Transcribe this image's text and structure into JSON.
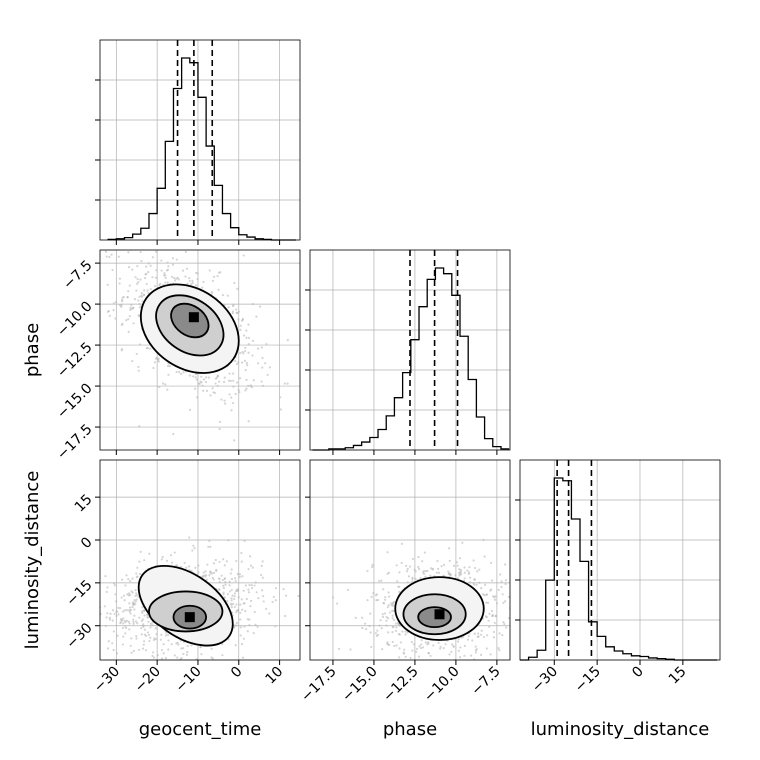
{
  "chart_data": {
    "type": "scatter",
    "title": "",
    "style": {
      "line_color": "#000000",
      "grid": true,
      "grid_color": "#b0b0b0",
      "sample_color": "#b8b8b8"
    },
    "parameters": [
      {
        "key": "geocent_time",
        "label": "geocent_time",
        "range": [
          -34,
          15
        ],
        "ticks": [
          -30,
          -20,
          -10,
          0,
          10
        ],
        "tick_labels": [
          "−30",
          "−20",
          "−10",
          "0",
          "10"
        ]
      },
      {
        "key": "phase",
        "label": "phase",
        "range": [
          -18.9,
          -6.7
        ],
        "ticks": [
          -17.5,
          -15.0,
          -12.5,
          -10.0,
          -7.5
        ],
        "tick_labels": [
          "−17.5",
          "−15.0",
          "−12.5",
          "−10.0",
          "−7.5"
        ]
      },
      {
        "key": "luminosity_distance",
        "label": "luminosity_distance",
        "range": [
          -42,
          28
        ],
        "ticks": [
          -30,
          -15,
          0,
          15
        ],
        "tick_labels": [
          "−30",
          "−15",
          "0",
          "15"
        ]
      }
    ],
    "histograms": [
      {
        "param": "geocent_time",
        "quantiles": [
          -15,
          -11,
          -6.5
        ],
        "bins": [
          -32,
          -30,
          -28,
          -26,
          -24,
          -22,
          -20,
          -18,
          -16,
          -14,
          -12,
          -10,
          -8,
          -6,
          -4,
          -2,
          0,
          2,
          4,
          6,
          8,
          10,
          12,
          14
        ],
        "counts": [
          1,
          2,
          4,
          10,
          20,
          45,
          88,
          168,
          258,
          310,
          302,
          243,
          160,
          93,
          45,
          21,
          9,
          5,
          2,
          1,
          0,
          0,
          0
        ]
      },
      {
        "param": "phase",
        "quantiles": [
          -12.8,
          -11.3,
          -9.9
        ],
        "bins": [
          -18.75,
          -18.25,
          -17.75,
          -17.25,
          -16.75,
          -16.25,
          -15.75,
          -15.25,
          -14.75,
          -14.25,
          -13.75,
          -13.25,
          -12.75,
          -12.25,
          -11.75,
          -11.25,
          -10.75,
          -10.25,
          -9.75,
          -9.25,
          -8.75,
          -8.25,
          -7.75,
          -7.25,
          -6.75
        ],
        "counts": [
          0,
          0,
          1,
          1,
          2,
          4,
          7,
          11,
          18,
          30,
          46,
          68,
          97,
          126,
          150,
          160,
          155,
          136,
          100,
          62,
          29,
          10,
          3,
          1
        ]
      },
      {
        "param": "luminosity_distance",
        "quantiles": [
          -29,
          -25,
          -17
        ],
        "bins": [
          -42,
          -39,
          -36,
          -33,
          -30,
          -27,
          -24,
          -21,
          -18,
          -15,
          -12,
          -9,
          -6,
          -3,
          0,
          3,
          6,
          9,
          12,
          15,
          18,
          21,
          24,
          27
        ],
        "counts": [
          0,
          4,
          14,
          115,
          262,
          258,
          203,
          142,
          55,
          34,
          19,
          13,
          9,
          6,
          5,
          3,
          2,
          1,
          0,
          0,
          0,
          0,
          0
        ]
      }
    ],
    "pairs": [
      {
        "x": "geocent_time",
        "y": "phase",
        "density_peak": [
          -11,
          -10.8
        ],
        "contour_levels": [
          {
            "center": [
              -12,
              -11
            ],
            "radii": [
              5,
              0.9
            ],
            "angle_deg": -35
          },
          {
            "center": [
              -12,
              -11.3
            ],
            "radii": [
              9,
              1.6
            ],
            "angle_deg": -35
          },
          {
            "center": [
              -12,
              -11.5
            ],
            "radii": [
              13,
              2.4
            ],
            "angle_deg": -35
          }
        ]
      },
      {
        "x": "geocent_time",
        "y": "luminosity_distance",
        "density_peak": [
          -12,
          -27
        ],
        "contour_levels": [
          {
            "center": [
              -12,
              -27
            ],
            "radii": [
              4,
              4
            ],
            "angle_deg": 0
          },
          {
            "center": [
              -13,
              -25
            ],
            "radii": [
              9,
              7
            ],
            "angle_deg": 0
          },
          {
            "center": [
              -13,
              -23
            ],
            "radii": [
              13,
              11
            ],
            "angle_deg": 10
          }
        ]
      },
      {
        "x": "phase",
        "y": "luminosity_distance",
        "density_peak": [
          -11.0,
          -26
        ],
        "contour_levels": [
          {
            "center": [
              -11.3,
              -27
            ],
            "radii": [
              1.0,
              3.5
            ],
            "angle_deg": 0
          },
          {
            "center": [
              -11.3,
              -26
            ],
            "radii": [
              1.9,
              7
            ],
            "angle_deg": 0
          },
          {
            "center": [
              -11.0,
              -24
            ],
            "radii": [
              2.7,
              11
            ],
            "angle_deg": 0
          }
        ]
      }
    ]
  }
}
